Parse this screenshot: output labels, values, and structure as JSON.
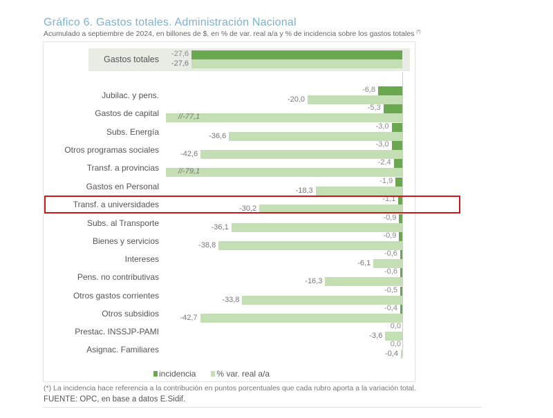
{
  "header": {
    "title": "Gráfico 6. Gastos totales. Administración Nacional",
    "subtitle": "Acumulado a septiembre de 2024, en billones de $, en % de var. real a/a y % de incidencia sobre los gastos totales",
    "subtitle_mark": "(*)"
  },
  "legend": {
    "incidencia": "incidencia",
    "var": "% var. real a/a"
  },
  "footer": {
    "footnote": "(*) La incidencia hace referencia a la contribución en puntos porcentuales que cada rubro aporta a la variación total.",
    "source": "FUENTE: OPC, en base a datos E.Sidif."
  },
  "colors": {
    "incidencia": "#6aa84f",
    "var": "#c4dfb4",
    "title": "#7fb0d0",
    "highlight": "#d0141a",
    "total_band": "#e9ece5"
  },
  "highlight": {
    "category": "Transf. a universidades"
  },
  "rows": [
    {
      "label": "Gastos totales",
      "inc": "-27,6",
      "var": "-27,6"
    },
    {
      "label": "Jubilac. y pens.",
      "inc": "-6,8",
      "var": "-20,0"
    },
    {
      "label": "Gastos de capital",
      "inc": "-5,3",
      "var": "//-77,1"
    },
    {
      "label": "Subs. Energía",
      "inc": "-3,0",
      "var": "-36,6"
    },
    {
      "label": "Otros programas sociales",
      "inc": "-3,0",
      "var": "-42,6"
    },
    {
      "label": "Transf. a provincias",
      "inc": "-2,4",
      "var": "//-79,1"
    },
    {
      "label": "Gastos en Personal",
      "inc": "-1,9",
      "var": "-18,3"
    },
    {
      "label": "Transf. a universidades",
      "inc": "-1,1",
      "var": "-30,2"
    },
    {
      "label": "Subs. al Transporte",
      "inc": "-0,9",
      "var": "-36,1"
    },
    {
      "label": "Bienes y servicios",
      "inc": "-0,9",
      "var": "-38,8"
    },
    {
      "label": "Intereses",
      "inc": "-0,6",
      "var": "-6,1"
    },
    {
      "label": "Pens. no contributivas",
      "inc": "-0,6",
      "var": "-16,3"
    },
    {
      "label": "Otros gastos corrientes",
      "inc": "-0,5",
      "var": "-33,8"
    },
    {
      "label": "Otros subsidios",
      "inc": "-0,4",
      "var": "-42,7"
    },
    {
      "label": "Prestac. INSSJP-PAMI",
      "inc": "0,0",
      "var": "-3,6"
    },
    {
      "label": "Asignac. Familiares",
      "inc": "0,0",
      "var": "-0,4"
    }
  ],
  "chart_data": {
    "type": "bar",
    "orientation": "horizontal",
    "title": "Gráfico 6. Gastos totales. Administración Nacional",
    "subtitle": "Acumulado a septiembre de 2024, en billones de $, en % de var. real a/a y % de incidencia sobre los gastos totales (*)",
    "categories": [
      "Gastos totales",
      "Jubilac. y pens.",
      "Gastos de capital",
      "Subs. Energía",
      "Otros programas sociales",
      "Transf. a provincias",
      "Gastos en Personal",
      "Transf. a universidades",
      "Subs. al Transporte",
      "Bienes y servicios",
      "Intereses",
      "Pens. no contributivas",
      "Otros gastos corrientes",
      "Otros subsidios",
      "Prestac. INSSJP-PAMI",
      "Asignac. Familiares"
    ],
    "series": [
      {
        "name": "incidencia",
        "color": "#6aa84f",
        "values": [
          -27.6,
          -6.8,
          -5.3,
          -3.0,
          -3.0,
          -2.4,
          -1.9,
          -1.1,
          -0.9,
          -0.9,
          -0.6,
          -0.6,
          -0.5,
          -0.4,
          0.0,
          0.0
        ]
      },
      {
        "name": "% var. real a/a",
        "color": "#c4dfb4",
        "values": [
          -27.6,
          -20.0,
          -77.1,
          -36.6,
          -42.6,
          -79.1,
          -18.3,
          -30.2,
          -36.1,
          -38.8,
          -6.1,
          -16.3,
          -33.8,
          -42.7,
          -3.6,
          -0.4
        ]
      }
    ],
    "annotations": [
      "Axis break (//) on Gastos de capital and Transf. a provincias var bars",
      "Red highlight box around Transf. a universidades"
    ],
    "legend_position": "bottom",
    "grid": false,
    "xlabel": "",
    "ylabel": ""
  }
}
